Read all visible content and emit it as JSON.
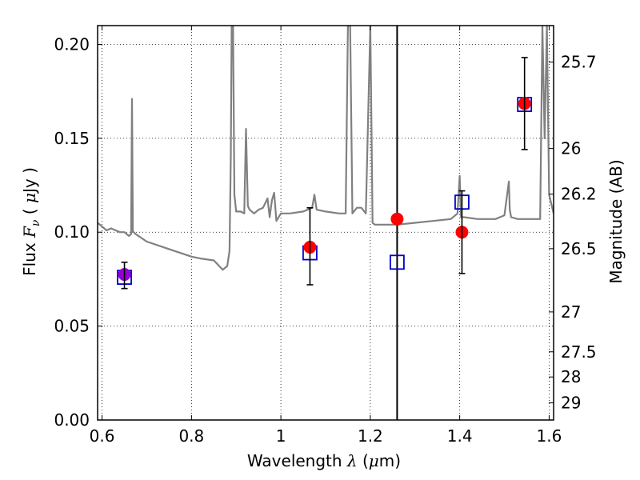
{
  "chart_data": {
    "type": "scatter",
    "xlabel_parts": [
      "Wavelength  ",
      "λ",
      " (",
      "μ",
      "m)"
    ],
    "ylabel_parts": [
      "Flux  ",
      "F",
      "ν",
      "  ( ",
      "μ",
      "Jy )"
    ],
    "y2label": "Magnitude (AB)",
    "xlim": [
      0.59,
      1.61
    ],
    "ylim": [
      0.0,
      0.21
    ],
    "grid": true,
    "x_ticks": [
      {
        "value": 0.6,
        "label": "0.6"
      },
      {
        "value": 0.8,
        "label": "0.8"
      },
      {
        "value": 1.0,
        "label": "1"
      },
      {
        "value": 1.2,
        "label": "1.2"
      },
      {
        "value": 1.4,
        "label": "1.4"
      },
      {
        "value": 1.6,
        "label": "1.6"
      }
    ],
    "y_ticks": [
      {
        "value": 0.0,
        "label": "0.00"
      },
      {
        "value": 0.05,
        "label": "0.05"
      },
      {
        "value": 0.1,
        "label": "0.10"
      },
      {
        "value": 0.15,
        "label": "0.15"
      },
      {
        "value": 0.2,
        "label": "0.20"
      }
    ],
    "y2_ticks": [
      {
        "mag": 25.7,
        "label": "25.7"
      },
      {
        "mag": 26.0,
        "label": "26"
      },
      {
        "mag": 26.2,
        "label": "26.2"
      },
      {
        "mag": 26.5,
        "label": "26.5"
      },
      {
        "mag": 27.0,
        "label": "27"
      },
      {
        "mag": 27.5,
        "label": "27.5"
      },
      {
        "mag": 28.0,
        "label": "28"
      },
      {
        "mag": 29.0,
        "label": "29"
      }
    ],
    "vertical_line_x": 1.26,
    "observed_points": {
      "marker": "filled-circle",
      "x": [
        0.65,
        1.065,
        1.26,
        1.405,
        1.545
      ],
      "y": [
        0.0775,
        0.092,
        0.107,
        0.1,
        0.1685
      ]
    },
    "observed_errors": [
      {
        "x": 0.65,
        "low": 0.07,
        "high": 0.084
      },
      {
        "x": 1.065,
        "low": 0.072,
        "high": 0.113
      },
      {
        "x": 1.405,
        "low": 0.078,
        "high": 0.122
      },
      {
        "x": 1.545,
        "low": 0.144,
        "high": 0.193
      }
    ],
    "model_points": {
      "marker": "open-square",
      "x": [
        0.65,
        1.065,
        1.26,
        1.405,
        1.545
      ],
      "y": [
        0.076,
        0.089,
        0.084,
        0.116,
        0.168
      ]
    },
    "model_spectrum": {
      "x": [
        0.59,
        0.6,
        0.61,
        0.62,
        0.63,
        0.64,
        0.65,
        0.66,
        0.665,
        0.667,
        0.669,
        0.671,
        0.675,
        0.7,
        0.75,
        0.8,
        0.82,
        0.85,
        0.87,
        0.88,
        0.885,
        0.888,
        0.89,
        0.893,
        0.896,
        0.9,
        0.91,
        0.918,
        0.922,
        0.926,
        0.93,
        0.94,
        0.95,
        0.96,
        0.97,
        0.975,
        0.98,
        0.985,
        0.99,
        1.0,
        1.02,
        1.05,
        1.07,
        1.075,
        1.08,
        1.1,
        1.13,
        1.145,
        1.15,
        1.155,
        1.16,
        1.17,
        1.18,
        1.19,
        1.2,
        1.205,
        1.21,
        1.26,
        1.3,
        1.34,
        1.38,
        1.395,
        1.4,
        1.403,
        1.406,
        1.41,
        1.44,
        1.48,
        1.5,
        1.51,
        1.512,
        1.515,
        1.53,
        1.56,
        1.58,
        1.585,
        1.59,
        1.595,
        1.6,
        1.61
      ],
      "y": [
        0.105,
        0.103,
        0.101,
        0.102,
        0.101,
        0.1,
        0.1,
        0.098,
        0.099,
        0.171,
        0.1,
        0.1,
        0.099,
        0.095,
        0.091,
        0.087,
        0.086,
        0.085,
        0.08,
        0.082,
        0.09,
        0.14,
        0.21,
        0.21,
        0.12,
        0.111,
        0.111,
        0.11,
        0.155,
        0.114,
        0.112,
        0.11,
        0.112,
        0.113,
        0.118,
        0.108,
        0.117,
        0.121,
        0.106,
        0.11,
        0.11,
        0.111,
        0.113,
        0.12,
        0.112,
        0.111,
        0.11,
        0.11,
        0.21,
        0.21,
        0.11,
        0.113,
        0.113,
        0.11,
        0.21,
        0.105,
        0.104,
        0.104,
        0.105,
        0.106,
        0.107,
        0.11,
        0.13,
        0.108,
        0.108,
        0.108,
        0.107,
        0.107,
        0.109,
        0.127,
        0.112,
        0.108,
        0.107,
        0.107,
        0.107,
        0.21,
        0.15,
        0.21,
        0.12,
        0.11
      ]
    },
    "colors": {
      "spectrum": "#808080",
      "observed": "#ff0000",
      "model": "#0000cc",
      "error_bars": "#000000",
      "vertical_line": "#000000",
      "overlap_blend": "#9400d3"
    }
  }
}
